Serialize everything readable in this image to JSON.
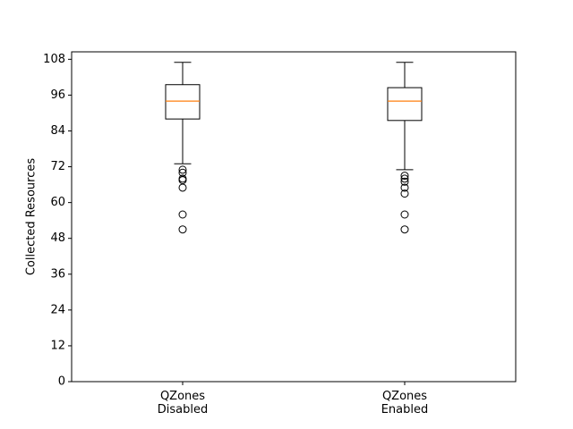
{
  "chart_data": {
    "type": "box",
    "ylabel": "Collected Resources",
    "ylim": [
      0,
      110.5
    ],
    "yticks": [
      0,
      12,
      24,
      36,
      48,
      60,
      72,
      84,
      96,
      108
    ],
    "grid": false,
    "categories": [
      {
        "label_lines": [
          "QZones",
          "Disabled"
        ]
      },
      {
        "label_lines": [
          "QZones",
          "Enabled"
        ]
      }
    ],
    "boxes": [
      {
        "whisker_low": 73,
        "q1": 88,
        "median": 94,
        "q3": 99.5,
        "whisker_high": 107,
        "outliers": [
          71,
          70,
          68,
          67.5,
          65,
          56,
          51
        ]
      },
      {
        "whisker_low": 71,
        "q1": 87.5,
        "median": 94,
        "q3": 98.5,
        "whisker_high": 107,
        "outliers": [
          69,
          68,
          67,
          65,
          63,
          56,
          51
        ]
      }
    ],
    "colors": {
      "median": "#ff7f0e",
      "box": "#000000"
    }
  }
}
